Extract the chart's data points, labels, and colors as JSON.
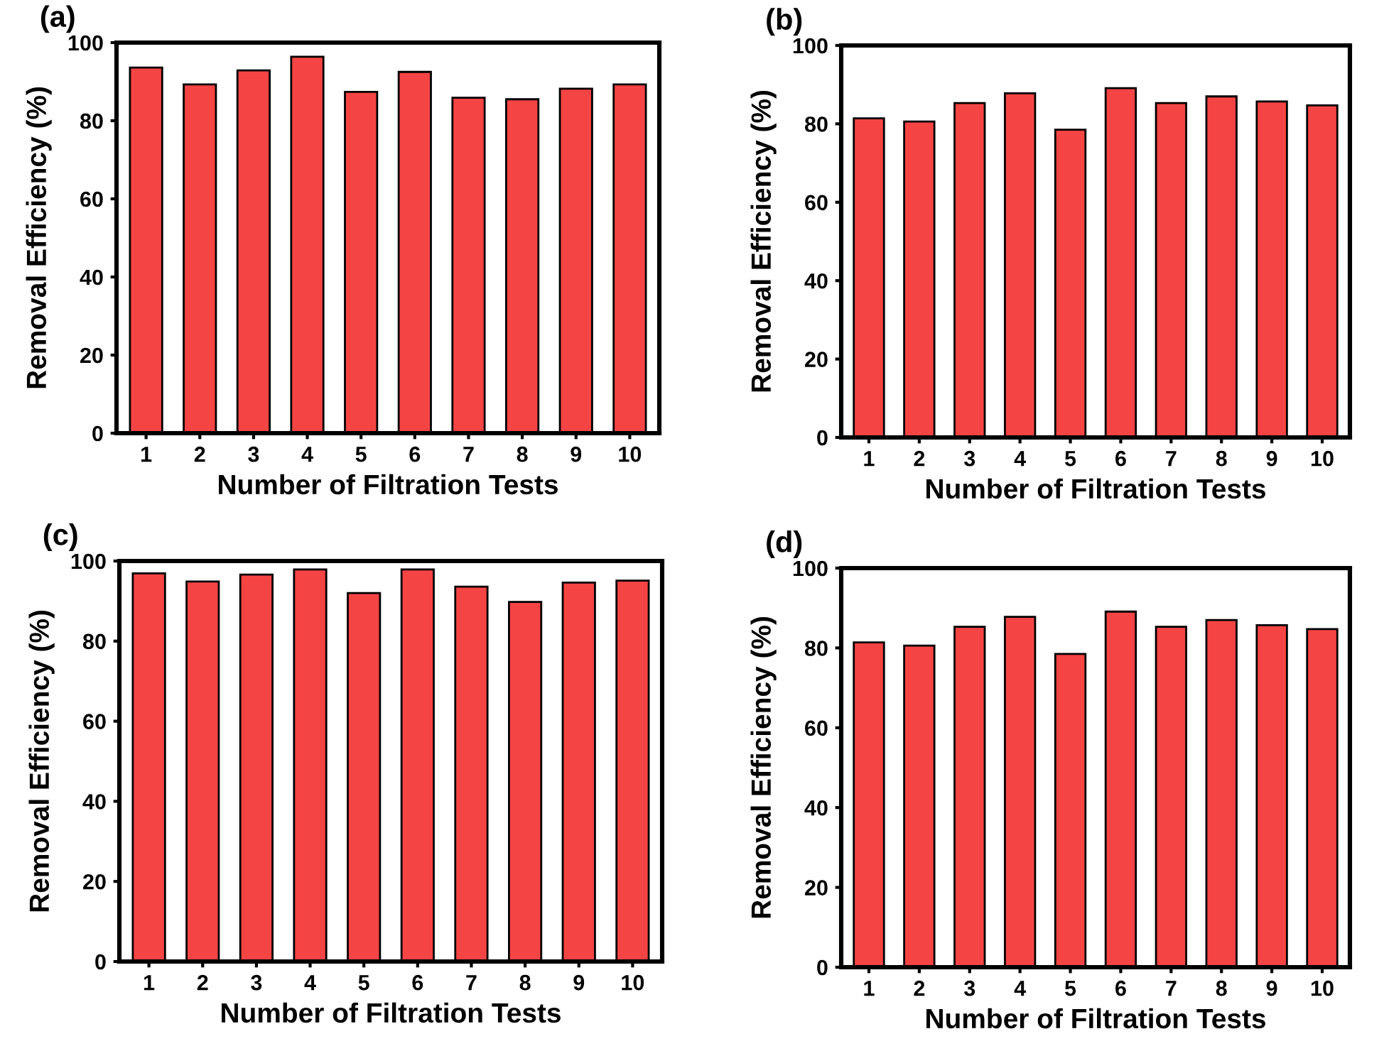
{
  "chart_data": [
    {
      "type": "bar",
      "title": "(a)",
      "xlabel": "Number of Filtration Tests",
      "ylabel": "Removal Efficiency (%)",
      "categories": [
        "1",
        "2",
        "3",
        "4",
        "5",
        "6",
        "7",
        "8",
        "9",
        "10"
      ],
      "values": [
        93.6,
        89.3,
        92.9,
        96.4,
        87.4,
        92.5,
        85.9,
        85.5,
        88.2,
        89.3
      ],
      "color": "#f44444",
      "ylim": [
        0,
        100
      ],
      "yticks": [
        0,
        20,
        40,
        60,
        80,
        100
      ],
      "grid": false,
      "legend": false
    },
    {
      "type": "bar",
      "title": "(b)",
      "xlabel": "Number of Filtration Tests",
      "ylabel": "Removal Efficiency (%)",
      "categories": [
        "1",
        "2",
        "3",
        "4",
        "5",
        "6",
        "7",
        "8",
        "9",
        "10"
      ],
      "values": [
        81.4,
        80.6,
        85.3,
        87.8,
        78.5,
        89.1,
        85.3,
        87.0,
        85.7,
        84.7
      ],
      "color": "#f44444",
      "ylim": [
        0,
        100
      ],
      "yticks": [
        0,
        20,
        40,
        60,
        80,
        100
      ],
      "grid": false,
      "legend": false
    },
    {
      "type": "bar",
      "title": "(c)",
      "xlabel": "Number of Filtration Tests",
      "ylabel": "Removal Efficiency (%)",
      "categories": [
        "1",
        "2",
        "3",
        "4",
        "5",
        "6",
        "7",
        "8",
        "9",
        "10"
      ],
      "values": [
        96.9,
        94.9,
        96.6,
        97.9,
        92.0,
        97.9,
        93.6,
        89.8,
        94.6,
        95.1
      ],
      "color": "#f44444",
      "ylim": [
        0,
        100
      ],
      "yticks": [
        0,
        20,
        40,
        60,
        80,
        100
      ],
      "grid": false,
      "legend": false
    },
    {
      "type": "bar",
      "title": "(d)",
      "xlabel": "Number of Filtration Tests",
      "ylabel": "Removal Efficiency (%)",
      "categories": [
        "1",
        "2",
        "3",
        "4",
        "5",
        "6",
        "7",
        "8",
        "9",
        "10"
      ],
      "values": [
        81.4,
        80.6,
        85.3,
        87.8,
        78.5,
        89.1,
        85.3,
        87.0,
        85.7,
        84.7
      ],
      "color": "#f44444",
      "ylim": [
        0,
        100
      ],
      "yticks": [
        0,
        20,
        40,
        60,
        80,
        100
      ],
      "grid": false,
      "legend": false
    }
  ]
}
